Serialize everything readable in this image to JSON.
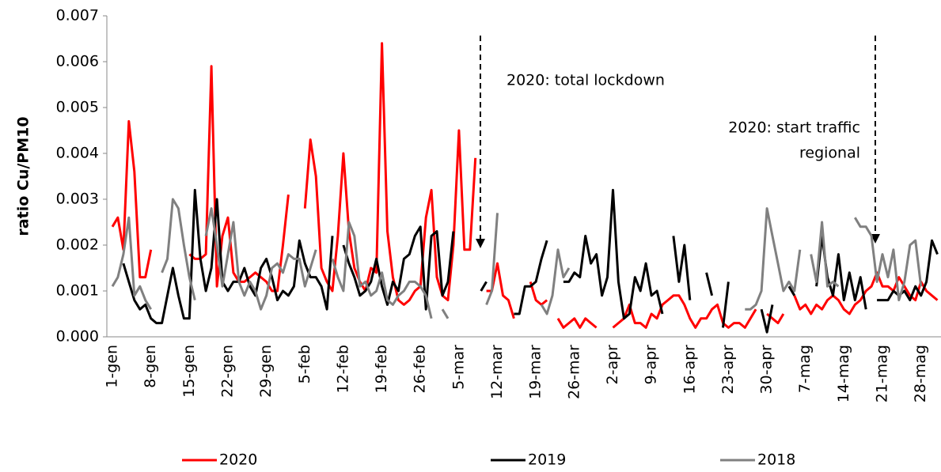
{
  "chart_data": {
    "type": "line",
    "y_label": "ratio Cu/PM10",
    "annotations": [
      [
        "2020: total lockdown"
      ],
      [
        "2020: start traffic",
        "regional"
      ]
    ],
    "categories": [
      "1-gen",
      null,
      null,
      null,
      null,
      null,
      null,
      "8-gen",
      null,
      null,
      null,
      null,
      null,
      null,
      "15-gen",
      null,
      null,
      null,
      null,
      null,
      null,
      "22-gen",
      null,
      null,
      null,
      null,
      null,
      null,
      "29-gen",
      null,
      null,
      null,
      null,
      null,
      null,
      "5-feb",
      null,
      null,
      null,
      null,
      null,
      null,
      "12-feb",
      null,
      null,
      null,
      null,
      null,
      null,
      "19-feb",
      null,
      null,
      null,
      null,
      null,
      null,
      "26-feb",
      null,
      null,
      null,
      null,
      null,
      null,
      "5-mar",
      null,
      null,
      null,
      null,
      null,
      null,
      "12-mar",
      null,
      null,
      null,
      null,
      null,
      null,
      "19-mar",
      null,
      null,
      null,
      null,
      null,
      null,
      "26-mar",
      null,
      null,
      null,
      null,
      null,
      null,
      "2-apr",
      null,
      null,
      null,
      null,
      null,
      null,
      "9-apr",
      null,
      null,
      null,
      null,
      null,
      null,
      "16-apr",
      null,
      null,
      null,
      null,
      null,
      null,
      "23-apr",
      null,
      null,
      null,
      null,
      null,
      null,
      "30-apr",
      null,
      null,
      null,
      null,
      null,
      null,
      "7-mag",
      null,
      null,
      null,
      null,
      null,
      null,
      "14-mag",
      null,
      null,
      null,
      null,
      null,
      null,
      "21-mag",
      null,
      null,
      null,
      null,
      null,
      null,
      "28-mag",
      null,
      null,
      null
    ],
    "series": [
      {
        "name": "2020",
        "color": "#ff0000",
        "values": [
          0.0024,
          0.0026,
          0.0019,
          0.0047,
          0.0036,
          0.0013,
          0.0013,
          0.0019,
          null,
          null,
          null,
          null,
          null,
          null,
          0.0018,
          0.0017,
          0.0017,
          0.0018,
          0.0059,
          0.0011,
          0.0022,
          0.0026,
          0.0014,
          0.0012,
          0.0012,
          0.0013,
          0.0014,
          0.0013,
          0.0012,
          0.001,
          0.001,
          0.002,
          0.0031,
          null,
          null,
          0.0028,
          0.0043,
          0.0035,
          0.0015,
          0.0012,
          0.001,
          0.0022,
          0.004,
          0.0023,
          0.0015,
          0.0012,
          0.001,
          0.0015,
          0.0014,
          0.0064,
          0.0023,
          0.0013,
          0.0008,
          0.0007,
          0.0008,
          0.001,
          0.0011,
          0.0026,
          0.0032,
          0.0013,
          0.0009,
          0.0008,
          0.002,
          0.0045,
          0.0019,
          0.0019,
          0.0039,
          null,
          0.001,
          0.001,
          0.0016,
          0.0009,
          0.0008,
          0.0004,
          null,
          null,
          0.0012,
          0.0008,
          0.0007,
          0.0008,
          null,
          0.0004,
          0.0002,
          0.0003,
          0.0004,
          0.0002,
          0.0004,
          0.0003,
          0.0002,
          null,
          null,
          0.0002,
          0.0003,
          0.0004,
          0.0007,
          0.0003,
          0.0003,
          0.0002,
          0.0005,
          0.0004,
          0.0007,
          0.0008,
          0.0009,
          0.0009,
          0.0007,
          0.0004,
          0.0002,
          0.0004,
          0.0004,
          0.0006,
          0.0007,
          0.0003,
          0.0002,
          0.0003,
          0.0003,
          0.0002,
          0.0004,
          0.0006,
          null,
          0.0005,
          0.0004,
          0.0003,
          0.0005,
          null,
          0.0009,
          0.0006,
          0.0007,
          0.0005,
          0.0007,
          0.0006,
          0.0008,
          0.0009,
          0.0008,
          0.0006,
          0.0005,
          0.0007,
          0.0008,
          0.001,
          0.0011,
          0.0014,
          0.0011,
          0.0011,
          0.001,
          0.0013,
          0.0011,
          0.0009,
          0.0008,
          0.0012,
          0.001,
          0.0009,
          0.0008
        ]
      },
      {
        "name": "2019",
        "color": "#000000",
        "values": [
          null,
          null,
          0.0016,
          0.0012,
          0.0008,
          0.0006,
          0.0007,
          0.0004,
          0.0003,
          0.0003,
          0.0009,
          0.0015,
          0.0009,
          0.0004,
          0.0004,
          0.0032,
          0.0017,
          0.001,
          0.0015,
          0.003,
          0.0012,
          0.001,
          0.0012,
          0.0012,
          0.0015,
          0.0011,
          0.0009,
          0.0015,
          0.0017,
          0.0013,
          0.0008,
          0.001,
          0.0009,
          0.0011,
          0.0021,
          0.0016,
          0.0013,
          0.0013,
          0.0011,
          0.0006,
          0.0022,
          null,
          0.002,
          0.0016,
          0.0013,
          0.0009,
          0.001,
          0.0012,
          0.0017,
          0.0011,
          0.0007,
          0.0012,
          0.001,
          0.0017,
          0.0018,
          0.0022,
          0.0024,
          0.0006,
          0.0022,
          0.0023,
          0.0009,
          0.0012,
          0.0023,
          null,
          null,
          null,
          null,
          0.001,
          0.0012,
          null,
          null,
          null,
          null,
          0.0005,
          0.0005,
          0.0011,
          0.0011,
          0.0012,
          0.0017,
          0.0021,
          null,
          null,
          0.0012,
          0.0012,
          0.0014,
          0.0013,
          0.0022,
          0.0016,
          0.0018,
          0.0009,
          0.0013,
          0.0032,
          0.0012,
          0.0004,
          0.0005,
          0.0013,
          0.001,
          0.0016,
          0.0009,
          0.001,
          0.0005,
          null,
          0.0022,
          0.0012,
          0.002,
          0.0008,
          null,
          null,
          0.0014,
          0.0009,
          null,
          0.0002,
          0.0012,
          null,
          null,
          null,
          null,
          null,
          0.0006,
          0.0001,
          0.0007,
          null,
          null,
          0.0011,
          0.0009,
          null,
          null,
          null,
          0.0011,
          0.0022,
          0.0013,
          0.0009,
          0.0018,
          0.0008,
          0.0014,
          0.0008,
          0.0013,
          0.0006,
          null,
          0.0008,
          0.0008,
          0.0008,
          0.001,
          0.0009,
          0.001,
          0.0008,
          0.0011,
          0.0009,
          0.0012,
          0.0021,
          0.0018
        ]
      },
      {
        "name": "2018",
        "color": "#808080",
        "values": [
          0.0011,
          0.0013,
          0.0018,
          0.0026,
          0.0009,
          0.0011,
          0.0008,
          0.0006,
          null,
          0.0014,
          0.0017,
          0.003,
          0.0028,
          0.002,
          0.0013,
          0.0008,
          null,
          0.0022,
          0.0028,
          0.002,
          0.0011,
          0.0018,
          0.0025,
          0.0012,
          0.0009,
          0.0012,
          0.001,
          0.0006,
          0.0009,
          0.0015,
          0.0016,
          0.0014,
          0.0018,
          0.0017,
          0.0017,
          0.0011,
          0.0015,
          0.0019,
          null,
          null,
          0.0017,
          0.0013,
          0.001,
          0.0025,
          0.0022,
          0.0011,
          0.0012,
          0.0009,
          0.001,
          0.0014,
          0.0008,
          0.0007,
          0.0009,
          0.001,
          0.0012,
          0.0012,
          0.0011,
          0.0009,
          0.0004,
          null,
          0.0006,
          0.0004,
          null,
          null,
          null,
          null,
          null,
          null,
          0.0007,
          0.001,
          0.0027,
          null,
          null,
          null,
          null,
          null,
          null,
          null,
          0.0007,
          0.0005,
          0.0009,
          0.0019,
          0.0013,
          0.0015,
          null,
          null,
          null,
          null,
          null,
          null,
          null,
          null,
          null,
          null,
          null,
          null,
          null,
          null,
          null,
          null,
          null,
          null,
          null,
          null,
          null,
          null,
          null,
          null,
          null,
          null,
          null,
          null,
          null,
          null,
          null,
          0.0006,
          0.0006,
          0.0007,
          0.001,
          0.0028,
          0.0022,
          0.0016,
          0.001,
          0.0012,
          0.001,
          0.0019,
          null,
          0.0018,
          0.0012,
          0.0025,
          0.0011,
          0.0012,
          0.0011,
          null,
          null,
          0.0026,
          0.0024,
          0.0024,
          0.0022,
          0.0012,
          0.0018,
          0.0013,
          0.0019,
          0.0008,
          0.0012,
          0.002,
          0.0021,
          0.0011,
          null,
          null,
          null
        ]
      }
    ],
    "ylim": [
      0,
      0.007
    ],
    "yticks": [
      {
        "value": 0,
        "label": "0.000"
      },
      {
        "value": 0.001,
        "label": "0.001"
      },
      {
        "value": 0.002,
        "label": "0.002"
      },
      {
        "value": 0.003,
        "label": "0.003"
      },
      {
        "value": 0.004,
        "label": "0.004"
      },
      {
        "value": 0.005,
        "label": "0.005"
      },
      {
        "value": 0.006,
        "label": "0.006"
      },
      {
        "value": 0.007,
        "label": "0.007"
      }
    ],
    "grid": false
  }
}
